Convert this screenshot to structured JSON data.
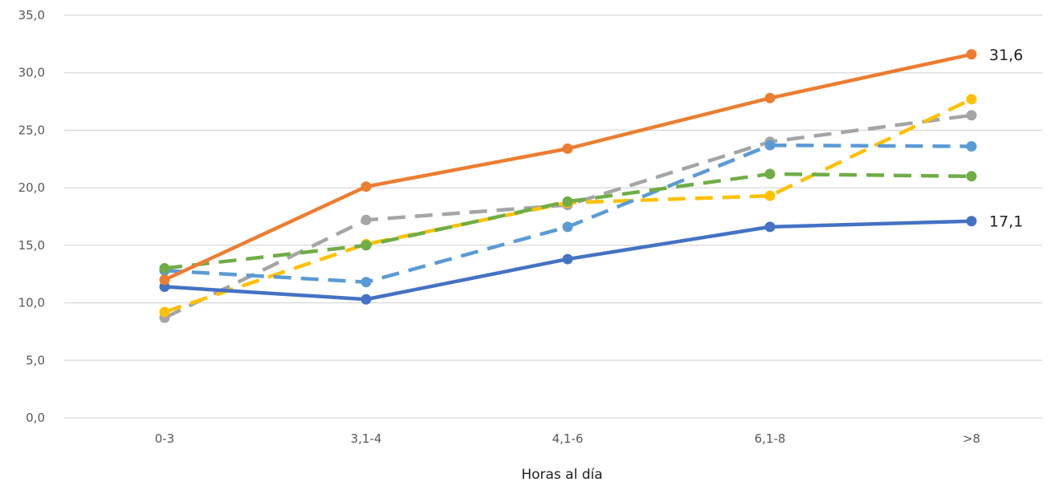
{
  "chart_data": {
    "type": "line",
    "title": "",
    "xlabel": "Horas al día",
    "ylabel": "",
    "categories": [
      "0-3",
      "3,1-4",
      "4,1-6",
      "6,1-8",
      ">8"
    ],
    "ylim": [
      0,
      35
    ],
    "yticks": [
      "0,0",
      "5,0",
      "10,0",
      "15,0",
      "20,0",
      "25,0",
      "30,0",
      "35,0"
    ],
    "grid": true,
    "legend": "none",
    "series": [
      {
        "color": "#4472c4",
        "dash": false,
        "values": [
          11.4,
          10.3,
          13.8,
          16.6,
          17.1
        ],
        "end_label": "17,1"
      },
      {
        "color": "#ed7d31",
        "dash": false,
        "values": [
          12.0,
          20.1,
          23.4,
          27.8,
          31.6
        ],
        "end_label": "31,6"
      },
      {
        "color": "#a5a5a5",
        "dash": true,
        "values": [
          8.7,
          17.2,
          18.5,
          24.0,
          26.3
        ]
      },
      {
        "color": "#ffc000",
        "dash": true,
        "values": [
          9.2,
          15.1,
          18.7,
          19.3,
          27.7
        ]
      },
      {
        "color": "#5b9bd5",
        "dash": true,
        "values": [
          12.8,
          11.8,
          16.6,
          23.7,
          23.6
        ]
      },
      {
        "color": "#70ad47",
        "dash": true,
        "values": [
          13.0,
          15.0,
          18.8,
          21.2,
          21.0
        ]
      }
    ]
  }
}
